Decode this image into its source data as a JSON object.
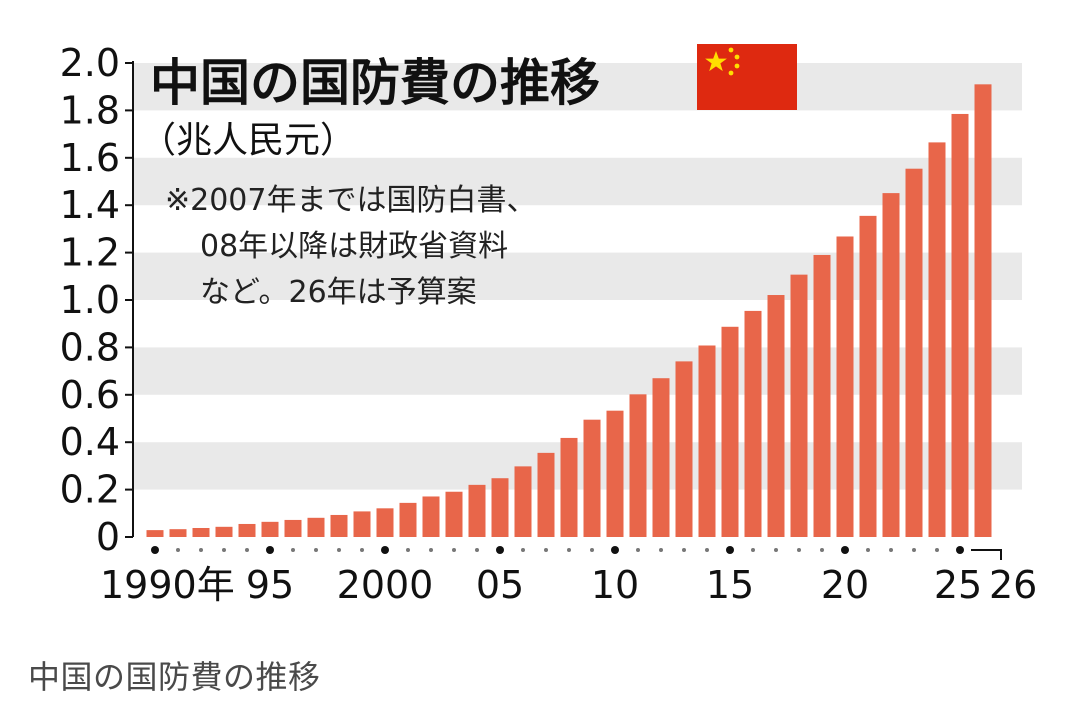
{
  "caption": "中国の国防費の推移",
  "colors": {
    "bar": "#e8664a",
    "band": "#e9e9e9",
    "axis": "#111111",
    "flag_red": "#de2910",
    "flag_star": "#ffde00"
  },
  "flag_icon": "china-flag-icon",
  "chart_data": {
    "type": "bar",
    "title": "中国の国防費の推移",
    "subtitle": "（兆人民元）",
    "note_lines": [
      "※2007年までは国防白書、",
      "08年以降は財政省資料",
      "など。26年は予算案"
    ],
    "ylim": [
      0,
      2.0
    ],
    "yticks": [
      "0",
      "0.2",
      "0.4",
      "0.6",
      "0.8",
      "1.0",
      "1.2",
      "1.4",
      "1.6",
      "1.8",
      "2.0"
    ],
    "grid": "alternating horizontal bands",
    "x_tick_labels": [
      {
        "year": 1990,
        "label": "1990年"
      },
      {
        "year": 1995,
        "label": "95"
      },
      {
        "year": 2000,
        "label": "2000"
      },
      {
        "year": 2005,
        "label": "05"
      },
      {
        "year": 2010,
        "label": "10"
      },
      {
        "year": 2015,
        "label": "15"
      },
      {
        "year": 2020,
        "label": "20"
      },
      {
        "year": 2025,
        "label": "25"
      },
      {
        "year": 2026,
        "label": "26"
      }
    ],
    "categories": [
      1990,
      1991,
      1992,
      1993,
      1994,
      1995,
      1996,
      1997,
      1998,
      1999,
      2000,
      2001,
      2002,
      2003,
      2004,
      2005,
      2006,
      2007,
      2008,
      2009,
      2010,
      2011,
      2012,
      2013,
      2014,
      2015,
      2016,
      2017,
      2018,
      2019,
      2020,
      2021,
      2022,
      2023,
      2024,
      2025,
      2026
    ],
    "values": [
      0.029,
      0.033,
      0.038,
      0.043,
      0.055,
      0.064,
      0.072,
      0.081,
      0.093,
      0.108,
      0.121,
      0.144,
      0.171,
      0.191,
      0.22,
      0.248,
      0.298,
      0.355,
      0.418,
      0.495,
      0.533,
      0.602,
      0.67,
      0.741,
      0.808,
      0.887,
      0.954,
      1.021,
      1.107,
      1.19,
      1.268,
      1.355,
      1.451,
      1.554,
      1.665,
      1.785,
      1.91
    ]
  }
}
